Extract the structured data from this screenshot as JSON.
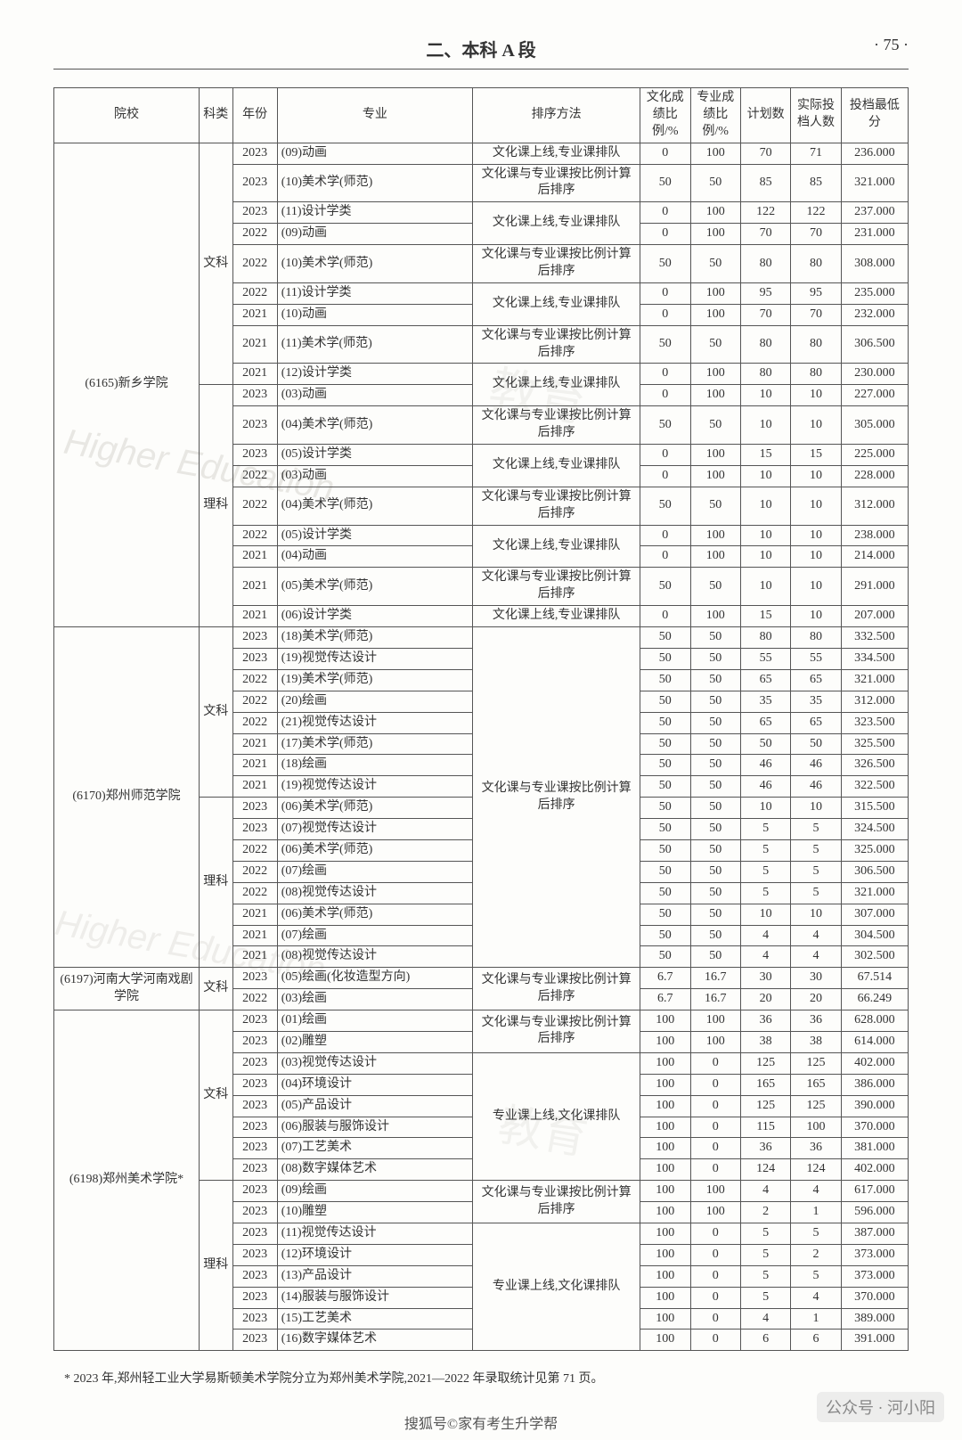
{
  "header": {
    "title": "二、本科 A 段",
    "pageNum": "· 75 ·"
  },
  "columns": [
    "院校",
    "科类",
    "年份",
    "专业",
    "排序方法",
    "文化成绩比例/%",
    "专业成绩比例/%",
    "计划数",
    "实际投档人数",
    "投档最低分"
  ],
  "sortMethods": {
    "cultureQualProfRank": "文化课上线,专业课排队",
    "proportionalRank": "文化课与专业课按比例计算后排序",
    "profQualCultureRank": "专业课上线,文化课排队"
  },
  "schools": [
    {
      "name": "(6165)新乡学院",
      "groups": [
        {
          "subject": "文科",
          "rows": [
            {
              "year": "2023",
              "major": "(09)动画",
              "sortKey": "cultureQualProfRank",
              "wh": "0",
              "zy": "100",
              "plan": "70",
              "act": "71",
              "score": "236.000"
            },
            {
              "year": "2023",
              "major": "(10)美术学(师范)",
              "sortKey": "proportionalRank",
              "wh": "50",
              "zy": "50",
              "plan": "85",
              "act": "85",
              "score": "321.000"
            },
            {
              "year": "2023",
              "major": "(11)设计学类",
              "sortKey": "cultureQualProfRank",
              "sortSpan": 2,
              "wh": "0",
              "zy": "100",
              "plan": "122",
              "act": "122",
              "score": "237.000"
            },
            {
              "year": "2022",
              "major": "(09)动画",
              "wh": "0",
              "zy": "100",
              "plan": "70",
              "act": "70",
              "score": "231.000"
            },
            {
              "year": "2022",
              "major": "(10)美术学(师范)",
              "sortKey": "proportionalRank",
              "wh": "50",
              "zy": "50",
              "plan": "80",
              "act": "80",
              "score": "308.000"
            },
            {
              "year": "2022",
              "major": "(11)设计学类",
              "sortKey": "cultureQualProfRank",
              "sortSpan": 2,
              "wh": "0",
              "zy": "100",
              "plan": "95",
              "act": "95",
              "score": "235.000"
            },
            {
              "year": "2021",
              "major": "(10)动画",
              "wh": "0",
              "zy": "100",
              "plan": "70",
              "act": "70",
              "score": "232.000"
            },
            {
              "year": "2021",
              "major": "(11)美术学(师范)",
              "sortKey": "proportionalRank",
              "wh": "50",
              "zy": "50",
              "plan": "80",
              "act": "80",
              "score": "306.500"
            },
            {
              "year": "2021",
              "major": "(12)设计学类",
              "sortKey": "cultureQualProfRank",
              "sortSpan": 2,
              "wh": "0",
              "zy": "100",
              "plan": "80",
              "act": "80",
              "score": "230.000"
            }
          ]
        },
        {
          "subject": "理科",
          "continuesSchool": true,
          "rows": [
            {
              "year": "2023",
              "major": "(03)动画",
              "wh": "0",
              "zy": "100",
              "plan": "10",
              "act": "10",
              "score": "227.000"
            },
            {
              "year": "2023",
              "major": "(04)美术学(师范)",
              "sortKey": "proportionalRank",
              "wh": "50",
              "zy": "50",
              "plan": "10",
              "act": "10",
              "score": "305.000"
            },
            {
              "year": "2023",
              "major": "(05)设计学类",
              "sortKey": "cultureQualProfRank",
              "sortSpan": 2,
              "wh": "0",
              "zy": "100",
              "plan": "15",
              "act": "15",
              "score": "225.000"
            },
            {
              "year": "2022",
              "major": "(03)动画",
              "wh": "0",
              "zy": "100",
              "plan": "10",
              "act": "10",
              "score": "228.000"
            },
            {
              "year": "2022",
              "major": "(04)美术学(师范)",
              "sortKey": "proportionalRank",
              "wh": "50",
              "zy": "50",
              "plan": "10",
              "act": "10",
              "score": "312.000"
            },
            {
              "year": "2022",
              "major": "(05)设计学类",
              "sortKey": "cultureQualProfRank",
              "sortSpan": 2,
              "wh": "0",
              "zy": "100",
              "plan": "10",
              "act": "10",
              "score": "238.000"
            },
            {
              "year": "2021",
              "major": "(04)动画",
              "wh": "0",
              "zy": "100",
              "plan": "10",
              "act": "10",
              "score": "214.000"
            },
            {
              "year": "2021",
              "major": "(05)美术学(师范)",
              "sortKey": "proportionalRank",
              "wh": "50",
              "zy": "50",
              "plan": "10",
              "act": "10",
              "score": "291.000"
            },
            {
              "year": "2021",
              "major": "(06)设计学类",
              "sortKey": "cultureQualProfRank",
              "wh": "0",
              "zy": "100",
              "plan": "15",
              "act": "10",
              "score": "207.000"
            }
          ]
        }
      ]
    },
    {
      "name": "(6170)郑州师范学院",
      "groups": [
        {
          "subject": "文科",
          "rows": [
            {
              "year": "2023",
              "major": "(18)美术学(师范)",
              "sortKey": "proportionalRank",
              "sortSpan": 16,
              "wh": "50",
              "zy": "50",
              "plan": "80",
              "act": "80",
              "score": "332.500"
            },
            {
              "year": "2023",
              "major": "(19)视觉传达设计",
              "wh": "50",
              "zy": "50",
              "plan": "55",
              "act": "55",
              "score": "334.500"
            },
            {
              "year": "2022",
              "major": "(19)美术学(师范)",
              "wh": "50",
              "zy": "50",
              "plan": "65",
              "act": "65",
              "score": "321.000"
            },
            {
              "year": "2022",
              "major": "(20)绘画",
              "wh": "50",
              "zy": "50",
              "plan": "35",
              "act": "35",
              "score": "312.000"
            },
            {
              "year": "2022",
              "major": "(21)视觉传达设计",
              "wh": "50",
              "zy": "50",
              "plan": "65",
              "act": "65",
              "score": "323.500"
            },
            {
              "year": "2021",
              "major": "(17)美术学(师范)",
              "wh": "50",
              "zy": "50",
              "plan": "50",
              "act": "50",
              "score": "325.500"
            },
            {
              "year": "2021",
              "major": "(18)绘画",
              "wh": "50",
              "zy": "50",
              "plan": "46",
              "act": "46",
              "score": "326.500"
            },
            {
              "year": "2021",
              "major": "(19)视觉传达设计",
              "wh": "50",
              "zy": "50",
              "plan": "46",
              "act": "46",
              "score": "322.500"
            }
          ]
        },
        {
          "subject": "理科",
          "rows": [
            {
              "year": "2023",
              "major": "(06)美术学(师范)",
              "wh": "50",
              "zy": "50",
              "plan": "10",
              "act": "10",
              "score": "315.500"
            },
            {
              "year": "2023",
              "major": "(07)视觉传达设计",
              "wh": "50",
              "zy": "50",
              "plan": "5",
              "act": "5",
              "score": "324.500"
            },
            {
              "year": "2022",
              "major": "(06)美术学(师范)",
              "wh": "50",
              "zy": "50",
              "plan": "5",
              "act": "5",
              "score": "325.000"
            },
            {
              "year": "2022",
              "major": "(07)绘画",
              "wh": "50",
              "zy": "50",
              "plan": "5",
              "act": "5",
              "score": "306.500"
            },
            {
              "year": "2022",
              "major": "(08)视觉传达设计",
              "wh": "50",
              "zy": "50",
              "plan": "5",
              "act": "5",
              "score": "321.000"
            },
            {
              "year": "2021",
              "major": "(06)美术学(师范)",
              "wh": "50",
              "zy": "50",
              "plan": "10",
              "act": "10",
              "score": "307.000"
            },
            {
              "year": "2021",
              "major": "(07)绘画",
              "wh": "50",
              "zy": "50",
              "plan": "4",
              "act": "4",
              "score": "304.500"
            },
            {
              "year": "2021",
              "major": "(08)视觉传达设计",
              "wh": "50",
              "zy": "50",
              "plan": "4",
              "act": "4",
              "score": "302.500"
            }
          ]
        }
      ]
    },
    {
      "name": "(6197)河南大学河南戏剧学院",
      "groups": [
        {
          "subject": "文科",
          "rows": [
            {
              "year": "2023",
              "major": "(05)绘画(化妆造型方向)",
              "sortKey": "proportionalRank",
              "sortSpan": 2,
              "wh": "6.7",
              "zy": "16.7",
              "plan": "30",
              "act": "30",
              "score": "67.514"
            },
            {
              "year": "2022",
              "major": "(03)绘画",
              "wh": "6.7",
              "zy": "16.7",
              "plan": "20",
              "act": "20",
              "score": "66.249"
            }
          ]
        }
      ]
    },
    {
      "name": "(6198)郑州美术学院*",
      "groups": [
        {
          "subject": "文科",
          "rows": [
            {
              "year": "2023",
              "major": "(01)绘画",
              "sortKey": "proportionalRank",
              "sortSpan": 2,
              "wh": "100",
              "zy": "100",
              "plan": "36",
              "act": "36",
              "score": "628.000"
            },
            {
              "year": "2023",
              "major": "(02)雕塑",
              "wh": "100",
              "zy": "100",
              "plan": "38",
              "act": "38",
              "score": "614.000"
            },
            {
              "year": "2023",
              "major": "(03)视觉传达设计",
              "sortKey": "profQualCultureRank",
              "sortSpan": 6,
              "wh": "100",
              "zy": "0",
              "plan": "125",
              "act": "125",
              "score": "402.000"
            },
            {
              "year": "2023",
              "major": "(04)环境设计",
              "wh": "100",
              "zy": "0",
              "plan": "165",
              "act": "165",
              "score": "386.000"
            },
            {
              "year": "2023",
              "major": "(05)产品设计",
              "wh": "100",
              "zy": "0",
              "plan": "125",
              "act": "125",
              "score": "390.000"
            },
            {
              "year": "2023",
              "major": "(06)服装与服饰设计",
              "wh": "100",
              "zy": "0",
              "plan": "115",
              "act": "100",
              "score": "370.000"
            },
            {
              "year": "2023",
              "major": "(07)工艺美术",
              "wh": "100",
              "zy": "0",
              "plan": "36",
              "act": "36",
              "score": "381.000"
            },
            {
              "year": "2023",
              "major": "(08)数字媒体艺术",
              "wh": "100",
              "zy": "0",
              "plan": "124",
              "act": "124",
              "score": "402.000"
            }
          ]
        },
        {
          "subject": "理科",
          "rows": [
            {
              "year": "2023",
              "major": "(09)绘画",
              "sortKey": "proportionalRank",
              "sortSpan": 2,
              "wh": "100",
              "zy": "100",
              "plan": "4",
              "act": "4",
              "score": "617.000"
            },
            {
              "year": "2023",
              "major": "(10)雕塑",
              "wh": "100",
              "zy": "100",
              "plan": "2",
              "act": "1",
              "score": "596.000"
            },
            {
              "year": "2023",
              "major": "(11)视觉传达设计",
              "sortKey": "profQualCultureRank",
              "sortSpan": 6,
              "wh": "100",
              "zy": "0",
              "plan": "5",
              "act": "5",
              "score": "387.000"
            },
            {
              "year": "2023",
              "major": "(12)环境设计",
              "wh": "100",
              "zy": "0",
              "plan": "5",
              "act": "2",
              "score": "373.000"
            },
            {
              "year": "2023",
              "major": "(13)产品设计",
              "wh": "100",
              "zy": "0",
              "plan": "5",
              "act": "5",
              "score": "373.000"
            },
            {
              "year": "2023",
              "major": "(14)服装与服饰设计",
              "wh": "100",
              "zy": "0",
              "plan": "5",
              "act": "4",
              "score": "370.000"
            },
            {
              "year": "2023",
              "major": "(15)工艺美术",
              "wh": "100",
              "zy": "0",
              "plan": "4",
              "act": "1",
              "score": "389.000"
            },
            {
              "year": "2023",
              "major": "(16)数字媒体艺术",
              "wh": "100",
              "zy": "0",
              "plan": "6",
              "act": "6",
              "score": "391.000"
            }
          ]
        }
      ]
    }
  ],
  "footnote": "* 2023 年,郑州轻工业大学易斯顿美术学院分立为郑州美术学院,2021—2022 年录取统计见第 71 页。",
  "bottomBadge": "公众号 · 河小阳",
  "bottomText": "搜狐号©家有考生升学帮"
}
